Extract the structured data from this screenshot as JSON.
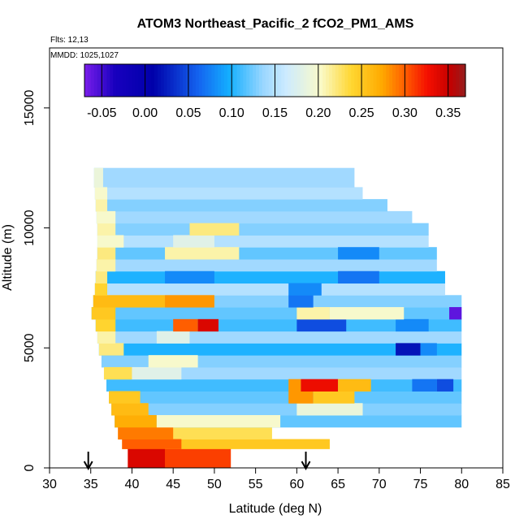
{
  "chart_data": {
    "type": "heatmap",
    "title": "ATOM3 Northeast_Pacific_2 fCO2_PM1_AMS",
    "subtitle_lines": [
      "Flts: 12,13",
      "MMDD: 1025,1027"
    ],
    "xlabel": "Latitude (deg N)",
    "ylabel": "Altitude (m)",
    "xlim": [
      30,
      85
    ],
    "ylim": [
      0,
      17500
    ],
    "x_ticks": [
      30,
      35,
      40,
      45,
      50,
      55,
      60,
      65,
      70,
      75,
      80,
      85
    ],
    "y_ticks": [
      0,
      5000,
      10000,
      15000
    ],
    "colorbar": {
      "ticks": [
        "-0.05",
        "0.00",
        "0.05",
        "0.10",
        "0.15",
        "0.20",
        "0.25",
        "0.30",
        "0.35"
      ],
      "range": [
        -0.07,
        0.37
      ]
    },
    "arrows_at_latitude": [
      34.7,
      61.1
    ],
    "value_range": [
      -0.07,
      0.37
    ],
    "layers": [
      {
        "alt": [
          0,
          800
        ],
        "lat": [
          39.5,
          52
        ],
        "value": 0.31
      },
      {
        "alt": [
          800,
          1200
        ],
        "lat": [
          38.8,
          64
        ],
        "value": 0.25
      },
      {
        "alt": [
          1200,
          1700
        ],
        "lat": [
          38.3,
          57
        ],
        "value": 0.23
      },
      {
        "alt": [
          1700,
          2200
        ],
        "lat": [
          37.9,
          80
        ],
        "value": 0.12
      },
      {
        "alt": [
          2200,
          2700
        ],
        "lat": [
          37.5,
          80
        ],
        "value": 0.13
      },
      {
        "alt": [
          2700,
          3200
        ],
        "lat": [
          37.2,
          80
        ],
        "value": 0.12
      },
      {
        "alt": [
          3200,
          3700
        ],
        "lat": [
          36.9,
          80
        ],
        "value": 0.11
      },
      {
        "alt": [
          3700,
          4200
        ],
        "lat": [
          36.6,
          80
        ],
        "value": 0.14
      },
      {
        "alt": [
          4200,
          4700
        ],
        "lat": [
          36.3,
          80
        ],
        "value": 0.13
      },
      {
        "alt": [
          4700,
          5200
        ],
        "lat": [
          36.0,
          80
        ],
        "value": 0.1
      },
      {
        "alt": [
          5200,
          5700
        ],
        "lat": [
          35.8,
          80
        ],
        "value": 0.14
      },
      {
        "alt": [
          5700,
          6200
        ],
        "lat": [
          35.6,
          80
        ],
        "value": 0.11
      },
      {
        "alt": [
          6200,
          6700
        ],
        "lat": [
          35.1,
          80
        ],
        "value": 0.12
      },
      {
        "alt": [
          6700,
          7200
        ],
        "lat": [
          35.3,
          80
        ],
        "value": 0.13
      },
      {
        "alt": [
          7200,
          7700
        ],
        "lat": [
          35.5,
          78
        ],
        "value": 0.15
      },
      {
        "alt": [
          7700,
          8200
        ],
        "lat": [
          35.6,
          78
        ],
        "value": 0.1
      },
      {
        "alt": [
          8200,
          8700
        ],
        "lat": [
          35.7,
          77
        ],
        "value": 0.14
      },
      {
        "alt": [
          8700,
          9200
        ],
        "lat": [
          35.8,
          77
        ],
        "value": 0.12
      },
      {
        "alt": [
          9200,
          9700
        ],
        "lat": [
          35.8,
          76
        ],
        "value": 0.15
      },
      {
        "alt": [
          9700,
          10200
        ],
        "lat": [
          35.8,
          76
        ],
        "value": 0.13
      },
      {
        "alt": [
          10200,
          10700
        ],
        "lat": [
          35.7,
          74
        ],
        "value": 0.14
      },
      {
        "alt": [
          10700,
          11200
        ],
        "lat": [
          35.6,
          71
        ],
        "value": 0.13
      },
      {
        "alt": [
          11200,
          11700
        ],
        "lat": [
          35.5,
          68
        ],
        "value": 0.15
      },
      {
        "alt": [
          11700,
          12500
        ],
        "lat": [
          35.4,
          67
        ],
        "value": 0.14
      }
    ],
    "patches": [
      {
        "alt": [
          0,
          800
        ],
        "lat": [
          39.5,
          44
        ],
        "value": 0.34
      },
      {
        "alt": [
          800,
          1200
        ],
        "lat": [
          38.8,
          46
        ],
        "value": 0.3
      },
      {
        "alt": [
          1200,
          1700
        ],
        "lat": [
          38.3,
          45
        ],
        "value": 0.29
      },
      {
        "alt": [
          1700,
          2200
        ],
        "lat": [
          37.9,
          43
        ],
        "value": 0.27
      },
      {
        "alt": [
          1700,
          2200
        ],
        "lat": [
          43,
          58
        ],
        "value": 0.2
      },
      {
        "alt": [
          2200,
          2700
        ],
        "lat": [
          37.5,
          42
        ],
        "value": 0.26
      },
      {
        "alt": [
          2200,
          2700
        ],
        "lat": [
          60,
          68
        ],
        "value": 0.19
      },
      {
        "alt": [
          2700,
          3200
        ],
        "lat": [
          37.2,
          41
        ],
        "value": 0.25
      },
      {
        "alt": [
          2700,
          3200
        ],
        "lat": [
          59,
          62
        ],
        "value": 0.28
      },
      {
        "alt": [
          2700,
          3200
        ],
        "lat": [
          62,
          67
        ],
        "value": 0.25
      },
      {
        "alt": [
          3200,
          3700
        ],
        "lat": [
          59,
          60.5
        ],
        "value": 0.28
      },
      {
        "alt": [
          3200,
          3700
        ],
        "lat": [
          60.5,
          65
        ],
        "value": 0.33
      },
      {
        "alt": [
          3200,
          3700
        ],
        "lat": [
          65,
          69
        ],
        "value": 0.26
      },
      {
        "alt": [
          3200,
          3700
        ],
        "lat": [
          74,
          77
        ],
        "value": 0.07
      },
      {
        "alt": [
          3200,
          3700
        ],
        "lat": [
          77,
          79
        ],
        "value": 0.05
      },
      {
        "alt": [
          3700,
          4200
        ],
        "lat": [
          36.6,
          40
        ],
        "value": 0.23
      },
      {
        "alt": [
          3700,
          4200
        ],
        "lat": [
          40,
          46
        ],
        "value": 0.18
      },
      {
        "alt": [
          4200,
          4700
        ],
        "lat": [
          42,
          48
        ],
        "value": 0.2
      },
      {
        "alt": [
          4700,
          5200
        ],
        "lat": [
          36,
          39
        ],
        "value": 0.22
      },
      {
        "alt": [
          4700,
          5200
        ],
        "lat": [
          72,
          75
        ],
        "value": 0.02
      },
      {
        "alt": [
          4700,
          5200
        ],
        "lat": [
          75,
          77
        ],
        "value": 0.08
      },
      {
        "alt": [
          5200,
          5700
        ],
        "lat": [
          35.8,
          38
        ],
        "value": 0.21
      },
      {
        "alt": [
          5200,
          5700
        ],
        "lat": [
          43,
          47
        ],
        "value": 0.18
      },
      {
        "alt": [
          5700,
          6200
        ],
        "lat": [
          35.6,
          38
        ],
        "value": 0.24
      },
      {
        "alt": [
          5700,
          6200
        ],
        "lat": [
          45,
          48
        ],
        "value": 0.3
      },
      {
        "alt": [
          5700,
          6200
        ],
        "lat": [
          48,
          50.5
        ],
        "value": 0.34
      },
      {
        "alt": [
          5700,
          6200
        ],
        "lat": [
          60,
          66
        ],
        "value": 0.05
      },
      {
        "alt": [
          5700,
          6200
        ],
        "lat": [
          72,
          76
        ],
        "value": 0.08
      },
      {
        "alt": [
          6200,
          6700
        ],
        "lat": [
          35.1,
          38
        ],
        "value": 0.25
      },
      {
        "alt": [
          6200,
          6700
        ],
        "lat": [
          60,
          64
        ],
        "value": 0.21
      },
      {
        "alt": [
          6200,
          6700
        ],
        "lat": [
          64,
          73
        ],
        "value": 0.2
      },
      {
        "alt": [
          6200,
          6700
        ],
        "lat": [
          78.5,
          80
        ],
        "value": -0.06
      },
      {
        "alt": [
          6700,
          7200
        ],
        "lat": [
          35.3,
          44
        ],
        "value": 0.26
      },
      {
        "alt": [
          6700,
          7200
        ],
        "lat": [
          44,
          50
        ],
        "value": 0.28
      },
      {
        "alt": [
          6700,
          7200
        ],
        "lat": [
          59,
          62
        ],
        "value": 0.07
      },
      {
        "alt": [
          7200,
          7700
        ],
        "lat": [
          35.5,
          37
        ],
        "value": 0.24
      },
      {
        "alt": [
          7200,
          7700
        ],
        "lat": [
          59,
          63
        ],
        "value": 0.08
      },
      {
        "alt": [
          7700,
          8200
        ],
        "lat": [
          35.6,
          37
        ],
        "value": 0.22
      },
      {
        "alt": [
          7700,
          8200
        ],
        "lat": [
          44,
          50
        ],
        "value": 0.08
      },
      {
        "alt": [
          7700,
          8200
        ],
        "lat": [
          65,
          70
        ],
        "value": 0.07
      },
      {
        "alt": [
          8200,
          8700
        ],
        "lat": [
          35.7,
          38
        ],
        "value": 0.21
      },
      {
        "alt": [
          8700,
          9200
        ],
        "lat": [
          35.8,
          38
        ],
        "value": 0.22
      },
      {
        "alt": [
          8700,
          9200
        ],
        "lat": [
          44,
          53
        ],
        "value": 0.21
      },
      {
        "alt": [
          8700,
          9200
        ],
        "lat": [
          65,
          70
        ],
        "value": 0.08
      },
      {
        "alt": [
          9200,
          9700
        ],
        "lat": [
          35.8,
          39
        ],
        "value": 0.2
      },
      {
        "alt": [
          9200,
          9700
        ],
        "lat": [
          45,
          50
        ],
        "value": 0.18
      },
      {
        "alt": [
          9700,
          10200
        ],
        "lat": [
          35.8,
          38
        ],
        "value": 0.21
      },
      {
        "alt": [
          9700,
          10200
        ],
        "lat": [
          47,
          53
        ],
        "value": 0.22
      },
      {
        "alt": [
          10200,
          10700
        ],
        "lat": [
          35.7,
          38
        ],
        "value": 0.2
      },
      {
        "alt": [
          10700,
          11200
        ],
        "lat": [
          35.6,
          37
        ],
        "value": 0.21
      },
      {
        "alt": [
          11200,
          11700
        ],
        "lat": [
          35.5,
          37
        ],
        "value": 0.2
      },
      {
        "alt": [
          11700,
          12500
        ],
        "lat": [
          35.4,
          36.5
        ],
        "value": 0.19
      }
    ]
  }
}
